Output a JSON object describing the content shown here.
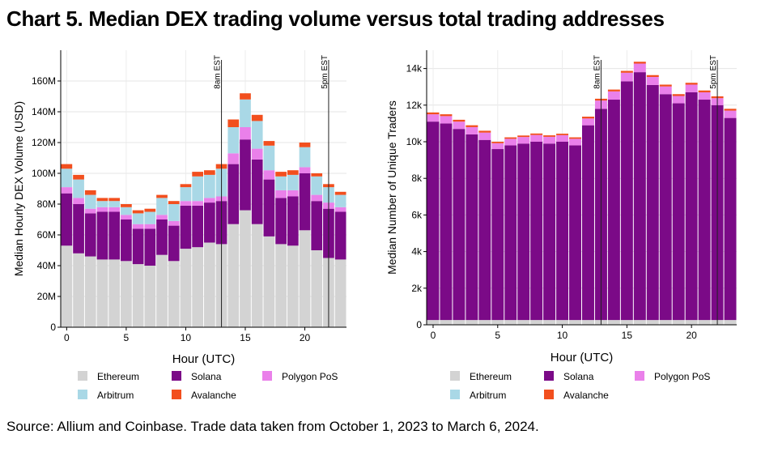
{
  "title": "Chart 5. Median DEX trading volume versus total trading addresses",
  "source": "Source: Allium and Coinbase. Trade data taken from October 1, 2023 to March 6, 2024.",
  "colors": {
    "Ethereum": "#d3d3d3",
    "Solana": "#7b0a87",
    "Polygon PoS": "#ea80ea",
    "Arbitrum": "#a9d8e6",
    "Avalanche": "#f24f1e"
  },
  "legend": {
    "rows": [
      [
        "Ethereum",
        "Solana",
        "Polygon PoS"
      ],
      [
        "Arbitrum",
        "Avalanche"
      ]
    ]
  },
  "chart_data": [
    {
      "type": "bar",
      "stacked": true,
      "xlabel": "Hour (UTC)",
      "ylabel": "Median Hourly DEX Volume (USD)",
      "ylim": [
        0,
        180
      ],
      "xlim": [
        -0.5,
        23.5
      ],
      "y_ticks": [
        0,
        20,
        40,
        60,
        80,
        100,
        120,
        140,
        160
      ],
      "y_tick_labels": [
        "0",
        "20M",
        "40M",
        "60M",
        "80M",
        "100M",
        "120M",
        "140M",
        "160M"
      ],
      "x_ticks": [
        0,
        5,
        10,
        15,
        20
      ],
      "x_tick_labels": [
        "0",
        "5",
        "10",
        "15",
        "20"
      ],
      "grid": true,
      "legend_position": "bottom",
      "annotations": [
        {
          "x": 13,
          "label": "8am EST"
        },
        {
          "x": 22,
          "label": "5pm EST"
        }
      ],
      "categories": [
        0,
        1,
        2,
        3,
        4,
        5,
        6,
        7,
        8,
        9,
        10,
        11,
        12,
        13,
        14,
        15,
        16,
        17,
        18,
        19,
        20,
        21,
        22,
        23
      ],
      "series": [
        {
          "name": "Ethereum",
          "values": [
            53,
            48,
            46,
            44,
            44,
            43,
            41,
            40,
            47,
            43,
            51,
            52,
            55,
            54,
            67,
            76,
            67,
            59,
            54,
            53,
            63,
            50,
            45,
            44
          ]
        },
        {
          "name": "Solana",
          "values": [
            34,
            32,
            28,
            31,
            31,
            27,
            23,
            24,
            23,
            23,
            28,
            27,
            26,
            28,
            39,
            46,
            42,
            37,
            30,
            32,
            37,
            32,
            32,
            31
          ]
        },
        {
          "name": "Polygon PoS",
          "values": [
            4,
            4,
            3,
            3,
            3,
            3,
            3,
            3,
            3,
            3,
            3,
            3,
            3,
            3,
            7,
            8,
            7,
            6,
            5,
            4,
            4,
            4,
            4,
            3
          ]
        },
        {
          "name": "Arbitrum",
          "values": [
            12,
            12,
            9,
            4,
            4,
            5,
            7,
            8,
            11,
            11,
            9,
            16,
            15,
            18,
            17,
            18,
            18,
            16,
            9,
            10,
            13,
            12,
            10,
            8
          ]
        },
        {
          "name": "Avalanche",
          "values": [
            3,
            3,
            3,
            2,
            2,
            2,
            2,
            2,
            2,
            2,
            2,
            3,
            3,
            3,
            5,
            4,
            4,
            3,
            3,
            3,
            3,
            2,
            2,
            2
          ]
        }
      ]
    },
    {
      "type": "bar",
      "stacked": true,
      "xlabel": "Hour (UTC)",
      "ylabel": "Median Number of Unique Traders",
      "ylim": [
        0,
        15000
      ],
      "xlim": [
        -0.5,
        23.5
      ],
      "y_ticks": [
        0,
        2000,
        4000,
        6000,
        8000,
        10000,
        12000,
        14000
      ],
      "y_tick_labels": [
        "0",
        "2k",
        "4k",
        "6k",
        "8k",
        "10k",
        "12k",
        "14k"
      ],
      "x_ticks": [
        0,
        5,
        10,
        15,
        20
      ],
      "x_tick_labels": [
        "0",
        "5",
        "10",
        "15",
        "20"
      ],
      "grid": true,
      "legend_position": "bottom",
      "annotations": [
        {
          "x": 13,
          "label": "8am EST"
        },
        {
          "x": 22,
          "label": "5pm EST"
        }
      ],
      "categories": [
        0,
        1,
        2,
        3,
        4,
        5,
        6,
        7,
        8,
        9,
        10,
        11,
        12,
        13,
        14,
        15,
        16,
        17,
        18,
        19,
        20,
        21,
        22,
        23
      ],
      "series": [
        {
          "name": "Ethereum",
          "values": [
            260,
            260,
            260,
            260,
            260,
            260,
            260,
            260,
            260,
            260,
            260,
            260,
            260,
            260,
            260,
            260,
            260,
            260,
            260,
            260,
            260,
            260,
            260,
            260
          ]
        },
        {
          "name": "Solana",
          "values": [
            10840,
            10740,
            10440,
            10140,
            9840,
            9340,
            9540,
            9640,
            9740,
            9640,
            9740,
            9540,
            10640,
            11540,
            12040,
            13040,
            13540,
            12840,
            12340,
            11840,
            12440,
            12040,
            11740,
            11040
          ]
        },
        {
          "name": "Polygon PoS",
          "values": [
            400,
            400,
            400,
            400,
            400,
            320,
            360,
            360,
            370,
            370,
            360,
            360,
            370,
            450,
            450,
            470,
            470,
            440,
            420,
            400,
            420,
            400,
            380,
            400
          ]
        },
        {
          "name": "Arbitrum",
          "values": [
            0,
            0,
            0,
            0,
            0,
            0,
            0,
            0,
            0,
            0,
            0,
            0,
            0,
            0,
            0,
            0,
            0,
            0,
            0,
            0,
            0,
            0,
            0,
            0
          ]
        },
        {
          "name": "Avalanche",
          "values": [
            100,
            100,
            100,
            100,
            100,
            80,
            80,
            80,
            80,
            80,
            80,
            80,
            100,
            100,
            100,
            100,
            100,
            100,
            100,
            100,
            100,
            100,
            100,
            100
          ]
        }
      ]
    }
  ]
}
